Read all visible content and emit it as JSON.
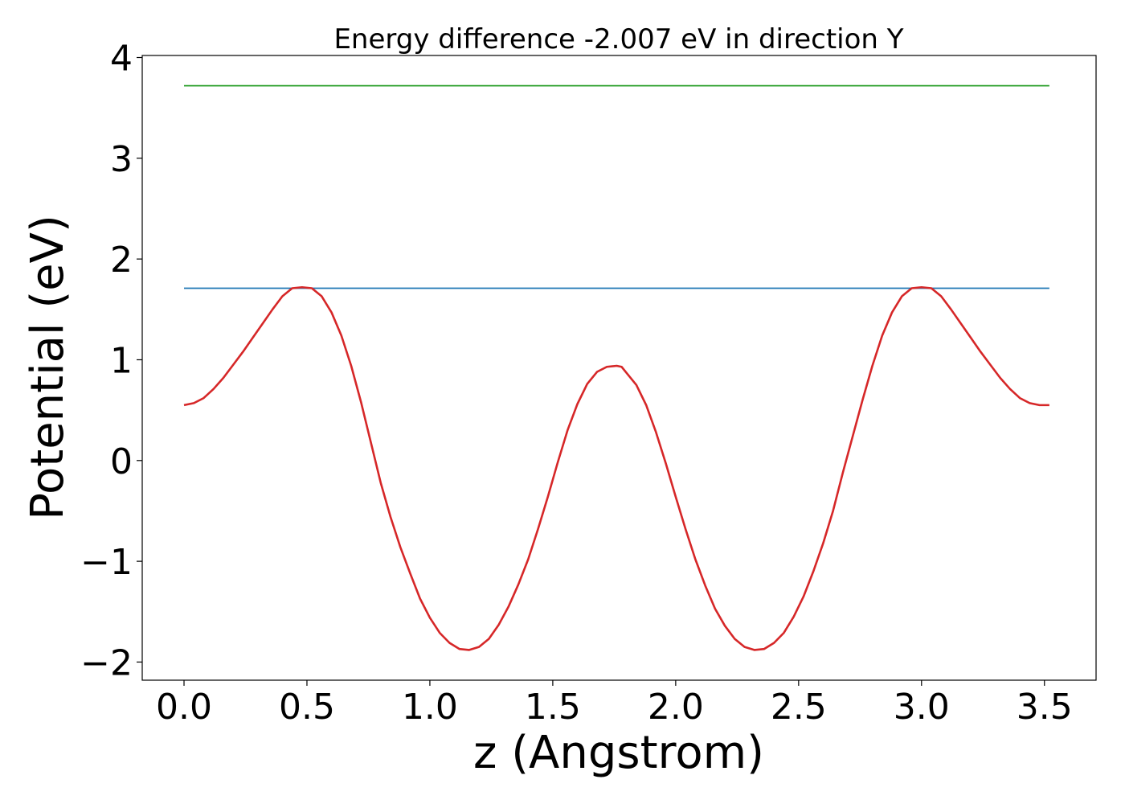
{
  "chart_data": {
    "type": "line",
    "title": "Energy difference -2.007 eV in direction Y",
    "xlabel": "z (Angstrom)",
    "ylabel": "Potential (eV)",
    "xlim": [
      -0.17,
      3.71
    ],
    "ylim": [
      -2.18,
      4.02
    ],
    "grid": false,
    "x_ticks": [
      0.0,
      0.5,
      1.0,
      1.5,
      2.0,
      2.5,
      3.0,
      3.5
    ],
    "x_tick_labels": [
      "0.0",
      "0.5",
      "1.0",
      "1.5",
      "2.0",
      "2.5",
      "3.0",
      "3.5"
    ],
    "y_ticks": [
      -2,
      -1,
      0,
      1,
      2,
      3,
      4
    ],
    "y_tick_labels": [
      "−2",
      "−1",
      "0",
      "1",
      "2",
      "3",
      "4"
    ],
    "series": [
      {
        "color": "#2ca02c",
        "x": [
          0.0,
          3.52
        ],
        "y": [
          3.72,
          3.72
        ]
      },
      {
        "color": "#1f77b4",
        "x": [
          0.0,
          3.52
        ],
        "y": [
          1.71,
          1.71
        ]
      },
      {
        "color": "#d62728",
        "x": [
          0.0,
          0.04,
          0.08,
          0.12,
          0.16,
          0.2,
          0.24,
          0.28,
          0.32,
          0.36,
          0.4,
          0.44,
          0.48,
          0.52,
          0.56,
          0.6,
          0.64,
          0.68,
          0.72,
          0.76,
          0.8,
          0.84,
          0.88,
          0.92,
          0.96,
          1.0,
          1.04,
          1.08,
          1.12,
          1.16,
          1.2,
          1.24,
          1.28,
          1.32,
          1.36,
          1.4,
          1.44,
          1.48,
          1.52,
          1.56,
          1.6,
          1.64,
          1.68,
          1.72,
          1.76,
          1.78,
          1.8,
          1.84,
          1.88,
          1.92,
          1.96,
          2.0,
          2.04,
          2.08,
          2.12,
          2.16,
          2.2,
          2.24,
          2.28,
          2.32,
          2.36,
          2.4,
          2.44,
          2.48,
          2.52,
          2.56,
          2.6,
          2.64,
          2.68,
          2.72,
          2.76,
          2.8,
          2.84,
          2.88,
          2.92,
          2.96,
          3.0,
          3.04,
          3.08,
          3.12,
          3.16,
          3.2,
          3.24,
          3.28,
          3.32,
          3.36,
          3.4,
          3.44,
          3.48,
          3.52
        ],
        "y": [
          0.55,
          0.57,
          0.62,
          0.71,
          0.82,
          0.95,
          1.08,
          1.22,
          1.36,
          1.5,
          1.63,
          1.71,
          1.72,
          1.71,
          1.63,
          1.47,
          1.24,
          0.94,
          0.58,
          0.18,
          -0.22,
          -0.56,
          -0.86,
          -1.12,
          -1.37,
          -1.56,
          -1.71,
          -1.81,
          -1.87,
          -1.88,
          -1.85,
          -1.77,
          -1.63,
          -1.45,
          -1.23,
          -0.98,
          -0.68,
          -0.36,
          -0.02,
          0.3,
          0.56,
          0.76,
          0.88,
          0.93,
          0.94,
          0.93,
          0.87,
          0.75,
          0.55,
          0.28,
          -0.03,
          -0.36,
          -0.68,
          -0.98,
          -1.24,
          -1.47,
          -1.64,
          -1.77,
          -1.85,
          -1.88,
          -1.87,
          -1.81,
          -1.71,
          -1.55,
          -1.35,
          -1.1,
          -0.82,
          -0.5,
          -0.12,
          0.24,
          0.6,
          0.94,
          1.24,
          1.47,
          1.63,
          1.71,
          1.72,
          1.71,
          1.63,
          1.5,
          1.36,
          1.22,
          1.08,
          0.95,
          0.82,
          0.71,
          0.62,
          0.57,
          0.55,
          0.55
        ]
      }
    ]
  }
}
